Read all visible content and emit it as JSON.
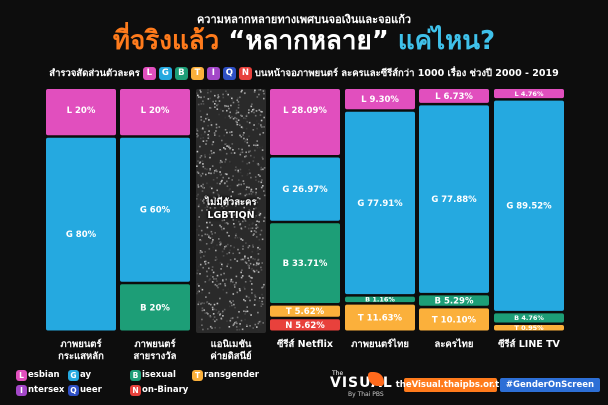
{
  "header": {
    "top_title": "ความหลากหลายทางเพศบนจอเงินและจอแก้ว",
    "main_title_part1": "ที่จริงแล้ว",
    "main_title_part2": " “หลากหลาย” ",
    "main_title_part3": "แค่ไหน?",
    "subtitle_prefix": "สำรวจสัดส่วนตัวละคร",
    "subtitle_suffix": "บนหน้าจอภาพยนตร์ ละครและซีรีส์กว่า 1000 เรื่อง ช่วงปี 2000 - 2019",
    "letters": [
      "L",
      "G",
      "B",
      "T",
      "I",
      "Q",
      "N"
    ]
  },
  "colors": {
    "lesbian": "#e14fbe",
    "gay": "#25a9e0",
    "bisexual": "#1d9e77",
    "transgender": "#fbb03b",
    "intersex": "#a347c8",
    "queer": "#2e4fc4",
    "non_binary": "#e8413c",
    "nodata_bg": "#2a2a2a"
  },
  "chart_data": {
    "type": "bar",
    "stacked": true,
    "normalized": true,
    "categories": [
      "ภาพยนตร์ กระแสหลัก",
      "ภาพยนตร์ สายรางวัล",
      "แอนิเมชัน ค่ายดิสนีย์",
      "ซีรีส์ Netflix",
      "ภาพยนตร์ไทย",
      "ละครไทย",
      "ซีรีส์ LINE TV"
    ],
    "category_lines": [
      [
        "ภาพยนตร์",
        "กระแสหลัก"
      ],
      [
        "ภาพยนตร์",
        "สายรางวัล"
      ],
      [
        "แอนิเมชัน",
        "ค่ายดิสนีย์"
      ],
      [
        "ซีรีส์ Netflix"
      ],
      [
        "ภาพยนตร์ไทย"
      ],
      [
        "ละครไทย"
      ],
      [
        "ซีรีส์ LINE TV"
      ]
    ],
    "series": [
      {
        "key": "L",
        "values": [
          20,
          20,
          null,
          28.09,
          9.3,
          6.73,
          4.76
        ],
        "labels": [
          "L 20%",
          "L 20%",
          null,
          "L 28.09%",
          "L 9.30%",
          "L 6.73%",
          "L 4.76%"
        ]
      },
      {
        "key": "G",
        "values": [
          80,
          60,
          null,
          26.97,
          77.91,
          77.88,
          89.52
        ],
        "labels": [
          "G 80%",
          "G 60%",
          null,
          "G 26.97%",
          "G 77.91%",
          "G 77.88%",
          "G 89.52%"
        ]
      },
      {
        "key": "B",
        "values": [
          0,
          20,
          null,
          33.71,
          1.16,
          5.29,
          4.76
        ],
        "labels": [
          null,
          "B 20%",
          null,
          "B 33.71%",
          "B 1.16%",
          "B 5.29%",
          "B 4.76%"
        ]
      },
      {
        "key": "T",
        "values": [
          0,
          0,
          null,
          5.62,
          11.63,
          10.1,
          0.95
        ],
        "labels": [
          null,
          null,
          null,
          "T 5.62%",
          "T 11.63%",
          "T 10.10%",
          "T 0.95%"
        ]
      },
      {
        "key": "N",
        "values": [
          0,
          0,
          null,
          5.62,
          0,
          0,
          0
        ],
        "labels": [
          null,
          null,
          null,
          "N 5.62%",
          null,
          null,
          null
        ]
      }
    ],
    "no_data_label": "ไม่มีตัวละคร LGBTIQN",
    "no_data_lines": [
      "ไม่มีตัวละคร",
      "LGBTIQN"
    ]
  },
  "legend": [
    {
      "letter": "L",
      "rest": "esbian",
      "color_key": "lesbian"
    },
    {
      "letter": "G",
      "rest": "ay",
      "color_key": "gay"
    },
    {
      "letter": "B",
      "rest": "isexual",
      "color_key": "bisexual"
    },
    {
      "letter": "T",
      "rest": "ransgender",
      "color_key": "transgender"
    },
    {
      "letter": "I",
      "rest": "ntersex",
      "color_key": "intersex"
    },
    {
      "letter": "Q",
      "rest": "ueer",
      "color_key": "queer"
    },
    {
      "letter": "N",
      "rest": "on-Binary",
      "color_key": "non_binary"
    }
  ],
  "footer": {
    "logo_the": "The",
    "logo_name": "VISUAL",
    "logo_by": "By Thai PBS",
    "url": "theVisual.thaipbs.or.th",
    "hashtag": "#GenderOnScreen"
  }
}
